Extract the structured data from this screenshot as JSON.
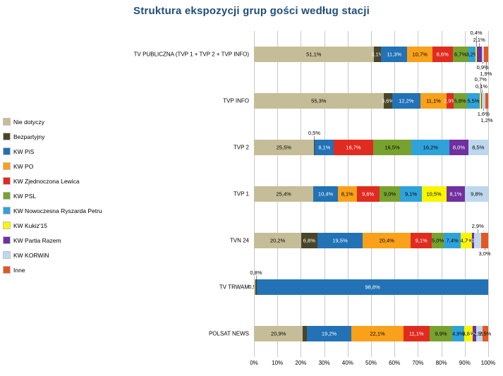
{
  "chart_data": {
    "type": "bar",
    "stacked": true,
    "orientation": "horizontal",
    "title": "Struktura ekspozycji grup gości według stacji",
    "legend_position": "left",
    "grid": "vertical",
    "x_axis": {
      "min": 0,
      "max": 100,
      "tick_labels": [
        "0%",
        "10%",
        "20%",
        "30%",
        "40%",
        "50%",
        "60%",
        "70%",
        "80%",
        "90%",
        "100%"
      ]
    },
    "series": [
      {
        "name": "Nie dotyczy",
        "color": "#C4BD97",
        "text_color": "#000000"
      },
      {
        "name": "Bezpartyjny",
        "color": "#494529",
        "text_color": "#FFFFFF"
      },
      {
        "name": "KW PiS",
        "color": "#2272B5",
        "text_color": "#FFFFFF"
      },
      {
        "name": "KW PO",
        "color": "#F9A11B",
        "text_color": "#000000"
      },
      {
        "name": "KW Zjednoczona Lewica",
        "color": "#E02B20",
        "text_color": "#FFFFFF"
      },
      {
        "name": "KW PSL",
        "color": "#78A22F",
        "text_color": "#000000"
      },
      {
        "name": "KW Nowoczesna Ryszarda Petru",
        "color": "#30A2DA",
        "text_color": "#000000"
      },
      {
        "name": "KW Kukiz'15",
        "color": "#F8F500",
        "text_color": "#000000"
      },
      {
        "name": "KW Partia Razem",
        "color": "#7030A0",
        "text_color": "#FFFFFF"
      },
      {
        "name": "KW KORWiN",
        "color": "#BDD7EE",
        "text_color": "#000000"
      },
      {
        "name": "Inne",
        "color": "#E25822",
        "text_color": "#000000"
      }
    ],
    "rows": [
      {
        "station": "TV PUBLICZNA (TVP 1 + TVP 2 + TVP INFO)",
        "segments": [
          {
            "series": "Nie dotyczy",
            "value": 51.1,
            "label": "51,1%",
            "pos": "in"
          },
          {
            "series": "Bezpartyjny",
            "value": 3.1,
            "label": "3,1%",
            "pos": "in"
          },
          {
            "series": "KW PiS",
            "value": 11.3,
            "label": "11,3%",
            "pos": "in"
          },
          {
            "series": "KW PO",
            "value": 10.7,
            "label": "10,7%",
            "pos": "in"
          },
          {
            "series": "KW Zjednoczona Lewica",
            "value": 8.6,
            "label": "8,6%",
            "pos": "in"
          },
          {
            "series": "KW PSL",
            "value": 6.7,
            "label": "6,7%",
            "pos": "in"
          },
          {
            "series": "KW Nowoczesna Ryszarda Petru",
            "value": 3.2,
            "label": "3,2%",
            "pos": "in"
          },
          {
            "series": "KW Kukiz'15",
            "value": 0.4,
            "label": "0,4%",
            "pos": "above2"
          },
          {
            "series": "KW Partia Razem",
            "value": 2.1,
            "label": "2,1%",
            "pos": "above1"
          },
          {
            "series": "KW KORWiN",
            "value": 0.9,
            "label": "0,9%",
            "pos": "below1"
          },
          {
            "series": "Inne",
            "value": 1.9,
            "label": "1,9%",
            "pos": "below2"
          }
        ]
      },
      {
        "station": "TVP INFO",
        "segments": [
          {
            "series": "Nie dotyczy",
            "value": 55.3,
            "label": "55,3%",
            "pos": "in"
          },
          {
            "series": "Bezpartyjny",
            "value": 3.6,
            "label": "3,6%",
            "pos": "in"
          },
          {
            "series": "KW PiS",
            "value": 12.2,
            "label": "12,2%",
            "pos": "in"
          },
          {
            "series": "KW PO",
            "value": 11.1,
            "label": "11,1%",
            "pos": "in"
          },
          {
            "series": "KW Zjednoczona Lewica",
            "value": 2.9,
            "label": "2,9%",
            "pos": "in"
          },
          {
            "series": "KW PSL",
            "value": 5.8,
            "label": "5,8%",
            "pos": "in"
          },
          {
            "series": "KW Nowoczesna Ryszarda Petru",
            "value": 5.5,
            "label": "5,5%",
            "pos": "in"
          },
          {
            "series": "KW Kukiz'15",
            "value": 0.7,
            "label": "0,7%",
            "pos": "above2"
          },
          {
            "series": "KW Partia Razem",
            "value": 0.1,
            "label": "0,1%",
            "pos": "above1"
          },
          {
            "series": "KW KORWiN",
            "value": 1.6,
            "label": "1,6%",
            "pos": "below1"
          },
          {
            "series": "Inne",
            "value": 1.2,
            "label": "1,2%",
            "pos": "below2"
          }
        ]
      },
      {
        "station": "TVP 2",
        "segments": [
          {
            "series": "Nie dotyczy",
            "value": 25.5,
            "label": "25,5%",
            "pos": "in"
          },
          {
            "series": "Bezpartyjny",
            "value": 0.5,
            "label": "0,5%",
            "pos": "above1"
          },
          {
            "series": "KW PiS",
            "value": 8.1,
            "label": "8,1%",
            "pos": "in"
          },
          {
            "series": "KW Zjednoczona Lewica",
            "value": 16.7,
            "label": "16,7%",
            "pos": "in"
          },
          {
            "series": "KW PSL",
            "value": 16.5,
            "label": "16,5%",
            "pos": "in"
          },
          {
            "series": "KW Nowoczesna Ryszarda Petru",
            "value": 16.2,
            "label": "16,2%",
            "pos": "in"
          },
          {
            "series": "KW Partia Razem",
            "value": 8.0,
            "label": "8,0%",
            "pos": "in"
          },
          {
            "series": "KW KORWiN",
            "value": 8.5,
            "label": "8,5%",
            "pos": "in"
          }
        ]
      },
      {
        "station": "TVP 1",
        "segments": [
          {
            "series": "Nie dotyczy",
            "value": 25.4,
            "label": "25,4%",
            "pos": "in"
          },
          {
            "series": "KW PiS",
            "value": 10.4,
            "label": "10,4%",
            "pos": "in"
          },
          {
            "series": "KW PO",
            "value": 8.1,
            "label": "8,1%",
            "pos": "in"
          },
          {
            "series": "KW Zjednoczona Lewica",
            "value": 9.6,
            "label": "9,6%",
            "pos": "in"
          },
          {
            "series": "KW PSL",
            "value": 9.0,
            "label": "9,0%",
            "pos": "in"
          },
          {
            "series": "KW Nowoczesna Ryszarda Petru",
            "value": 9.1,
            "label": "9,1%",
            "pos": "in"
          },
          {
            "series": "KW Kukiz'15",
            "value": 10.5,
            "label": "10,5%",
            "pos": "in"
          },
          {
            "series": "KW Partia Razem",
            "value": 8.1,
            "label": "8,1%",
            "pos": "in"
          },
          {
            "series": "KW KORWiN",
            "value": 9.8,
            "label": "9,8%",
            "pos": "in"
          }
        ]
      },
      {
        "station": "TVN 24",
        "segments": [
          {
            "series": "Nie dotyczy",
            "value": 20.2,
            "label": "20,2%",
            "pos": "in"
          },
          {
            "series": "Bezpartyjny",
            "value": 6.8,
            "label": "6,8%",
            "pos": "in"
          },
          {
            "series": "KW PiS",
            "value": 19.5,
            "label": "19,5%",
            "pos": "in"
          },
          {
            "series": "KW PO",
            "value": 20.4,
            "label": "20,4%",
            "pos": "in"
          },
          {
            "series": "KW Zjednoczona Lewica",
            "value": 9.1,
            "label": "9,1%",
            "pos": "in"
          },
          {
            "series": "KW PSL",
            "value": 5.0,
            "label": "5,0%",
            "pos": "in"
          },
          {
            "series": "KW Nowoczesna Ryszarda Petru",
            "value": 7.4,
            "label": "7,4%",
            "pos": "in"
          },
          {
            "series": "KW Kukiz'15",
            "value": 4.7,
            "label": "4,7%",
            "pos": "in"
          },
          {
            "series": "KW Partia Razem",
            "value": 1.0,
            "label": "1,0%",
            "pos": "in"
          },
          {
            "series": "KW KORWiN",
            "value": 2.9,
            "label": "2,9%",
            "pos": "above1"
          },
          {
            "series": "Inne",
            "value": 3.0,
            "label": "3,0%",
            "pos": "below1"
          }
        ]
      },
      {
        "station": "TV TRWAM",
        "segments": [
          {
            "series": "Nie dotyczy",
            "value": 0.5,
            "label": "0,5%",
            "pos": "bar"
          },
          {
            "series": "Bezpartyjny",
            "value": 0.8,
            "label": "0,8%",
            "pos": "above1"
          },
          {
            "series": "KW PiS",
            "value": 98.8,
            "label": "98,8%",
            "pos": "in"
          }
        ]
      },
      {
        "station": "POLSAT NEWS",
        "segments": [
          {
            "series": "Nie dotyczy",
            "value": 20.9,
            "label": "20,9%",
            "pos": "in"
          },
          {
            "series": "Bezpartyjny",
            "value": 1.6,
            "label": "1,6%",
            "pos": "bar"
          },
          {
            "series": "KW PiS",
            "value": 19.2,
            "label": "19,2%",
            "pos": "in"
          },
          {
            "series": "KW PO",
            "value": 22.1,
            "label": "22,1%",
            "pos": "in"
          },
          {
            "series": "KW Zjednoczona Lewica",
            "value": 11.1,
            "label": "11,1%",
            "pos": "in"
          },
          {
            "series": "KW PSL",
            "value": 9.9,
            "label": "9,9%",
            "pos": "in"
          },
          {
            "series": "KW Nowoczesna Ryszarda Petru",
            "value": 4.9,
            "label": "4,9%",
            "pos": "in"
          },
          {
            "series": "KW Kukiz'15",
            "value": 3.8,
            "label": "3,8%",
            "pos": "in"
          },
          {
            "series": "KW Partia Razem",
            "value": 1.5,
            "label": "1,5%",
            "pos": "in"
          },
          {
            "series": "KW KORWiN",
            "value": 2.5,
            "label": "2,5%",
            "pos": "in"
          },
          {
            "series": "Inne",
            "value": 2.5,
            "label": "2,5%",
            "pos": "in"
          }
        ]
      }
    ]
  }
}
